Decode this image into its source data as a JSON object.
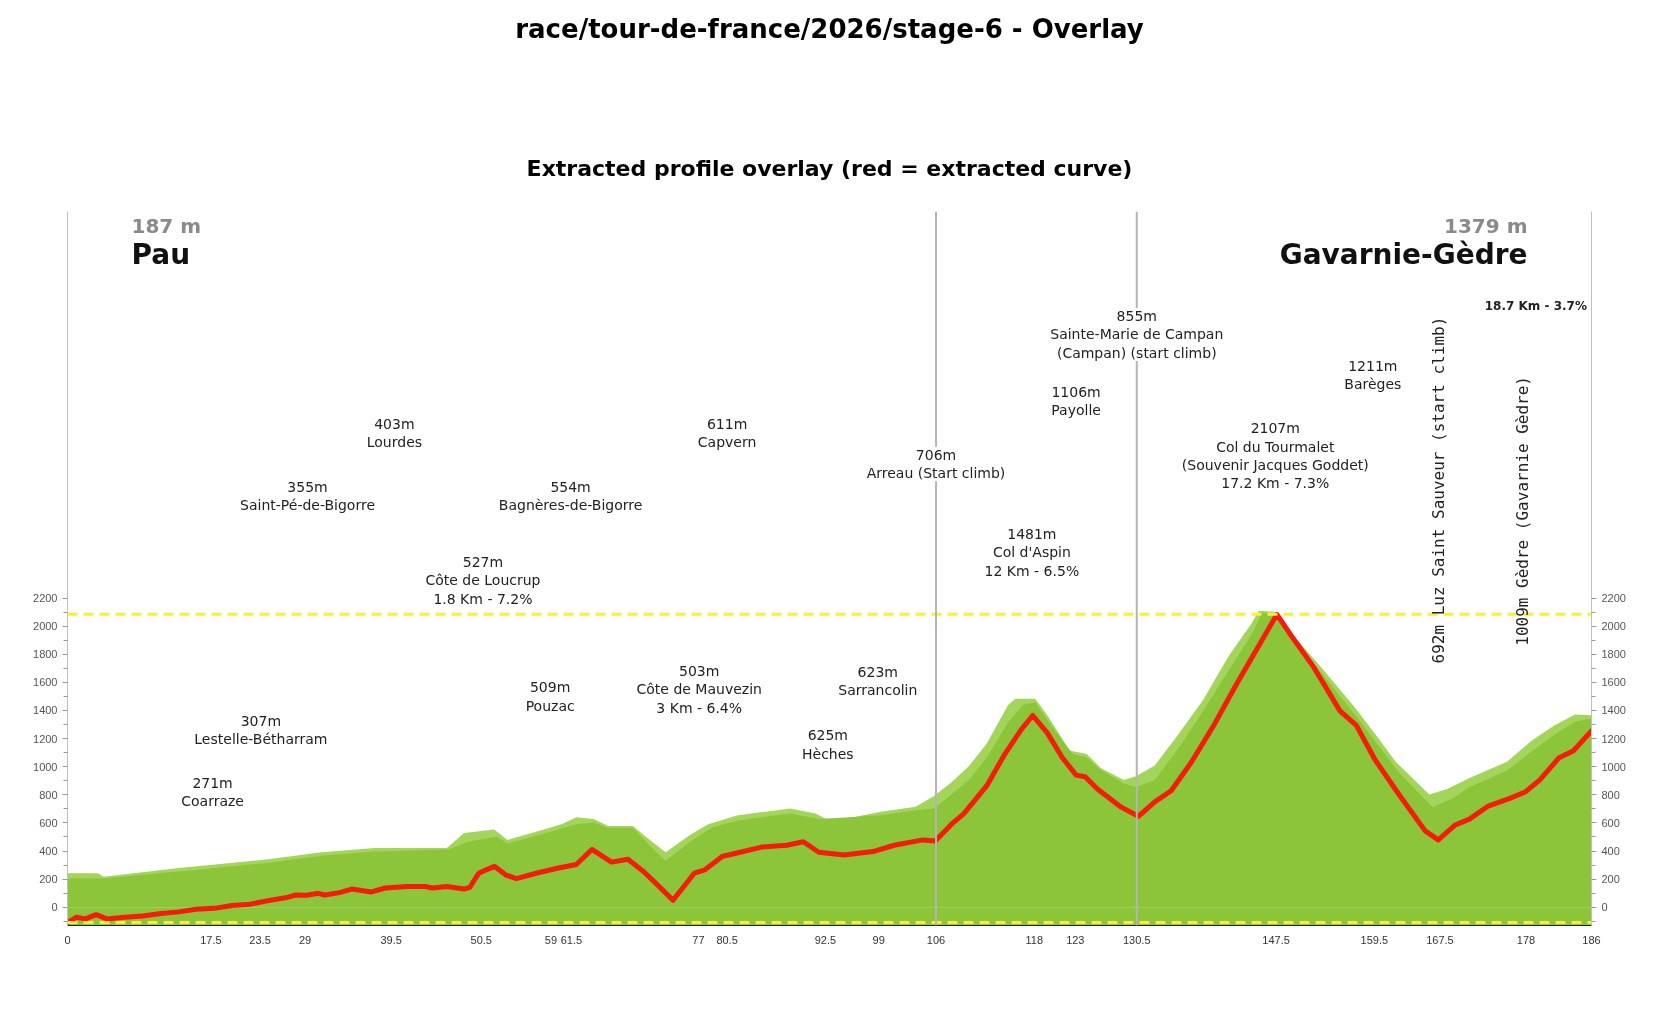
{
  "chart_data": {
    "type": "area",
    "title": "race/tour-de-france/2026/stage-6 - Overlay",
    "subtitle": "Extracted profile overlay (red = extracted curve)",
    "xlim": [
      0,
      186
    ],
    "xticks": [
      0,
      17.5,
      23.5,
      29,
      39.5,
      50.5,
      59,
      61.5,
      77,
      80.5,
      92.5,
      99,
      106,
      118,
      123,
      130.5,
      147.5,
      159.5,
      167.5,
      178,
      186
    ],
    "ylim": [
      -130,
      4950
    ],
    "yticks": [
      {
        "value": -100,
        "label": null
      },
      0,
      {
        "value": 100,
        "label": null
      },
      200,
      {
        "value": 300,
        "label": null
      },
      400,
      {
        "value": 500,
        "label": null
      },
      600,
      {
        "value": 700,
        "label": null
      },
      800,
      {
        "value": 900,
        "label": null
      },
      1000,
      {
        "value": 1100,
        "label": null
      },
      1200,
      {
        "value": 1300,
        "label": null
      },
      1400,
      {
        "value": 1500,
        "label": null
      },
      1600,
      {
        "value": 1700,
        "label": null
      },
      1800,
      {
        "value": 1900,
        "label": null
      },
      2000,
      {
        "value": 2100,
        "label": null
      },
      2200
    ],
    "y2lim": [
      -130,
      4950
    ],
    "y2ticks": [
      {
        "value": -100,
        "label": null
      },
      0,
      {
        "value": 100,
        "label": null
      },
      200,
      {
        "value": 300,
        "label": null
      },
      400,
      {
        "value": 500,
        "label": null
      },
      600,
      {
        "value": 700,
        "label": null
      },
      800,
      {
        "value": 900,
        "label": null
      },
      1000,
      {
        "value": 1100,
        "label": null
      },
      1200,
      {
        "value": 1300,
        "label": null
      },
      1400,
      {
        "value": 1500,
        "label": null
      },
      1600,
      {
        "value": 1700,
        "label": null
      },
      1800,
      {
        "value": 1900,
        "label": null
      },
      2000,
      {
        "value": 2100,
        "label": null
      },
      2200
    ],
    "series": [
      {
        "color": "#a3d55a",
        "x": [
          0,
          3.7,
          4.4,
          13.6,
          24.5,
          31.0,
          37.5,
          46.3,
          48.4,
          52.1,
          53.7,
          57.7,
          60.3,
          62.1,
          64.2,
          66.0,
          69.0,
          70.8,
          73.0,
          76.0,
          78.2,
          81.7,
          88.2,
          91.3,
          92.6,
          94.8,
          99.1,
          103.5,
          105.7,
          107.9,
          110.0,
          112.2,
          114.8,
          115.7,
          118.1,
          119.6,
          122.3,
          124.4,
          126.1,
          128.9,
          130.4,
          132.7,
          135.4,
          138.6,
          141.7,
          144.5,
          145.4,
          147.6,
          149.9,
          153.0,
          157.1,
          159.8,
          162.1,
          166.2,
          168.4,
          171.1,
          175.7,
          178.8,
          181.5,
          184.0,
          186.0
        ],
        "values": [
          242,
          242,
          217,
          279,
          341,
          391,
          421,
          421,
          528,
          553,
          479,
          546,
          591,
          641,
          628,
          578,
          578,
          491,
          391,
          516,
          591,
          653,
          703,
          666,
          628,
          628,
          678,
          715,
          790,
          890,
          1003,
          1165,
          1439,
          1484,
          1484,
          1364,
          1115,
          1090,
          990,
          906,
          932,
          1009,
          1216,
          1475,
          1786,
          2018,
          2109,
          2101,
          1915,
          1708,
          1423,
          1216,
          1035,
          802,
          841,
          919,
          1035,
          1190,
          1294,
          1371,
          1366
        ]
      },
      {
        "color": "#8cc43a",
        "x": [
          0,
          4.4,
          13.6,
          24.5,
          31.0,
          37.5,
          46.5,
          48.9,
          52.4,
          53.7,
          57.7,
          62.1,
          64.2,
          66.0,
          69.0,
          70.8,
          73.0,
          76.0,
          78.6,
          81.7,
          88.2,
          91.7,
          99.1,
          103.5,
          105.7,
          107.9,
          110.0,
          112.2,
          114.8,
          116.6,
          118.1,
          120.1,
          122.7,
          124.4,
          126.1,
          128.9,
          130.4,
          132.7,
          135.4,
          138.6,
          141.7,
          144.5,
          145.8,
          147.6,
          149.9,
          153.0,
          157.1,
          159.8,
          162.5,
          166.6,
          169.1,
          171.1,
          175.7,
          178.8,
          181.5,
          184.0,
          186.0
        ],
        "values": [
          204,
          204,
          254,
          316,
          366,
          396,
          411,
          466,
          504,
          454,
          516,
          591,
          603,
          566,
          566,
          454,
          329,
          466,
          566,
          616,
          666,
          628,
          653,
          690,
          703,
          803,
          903,
          1065,
          1314,
          1439,
          1459,
          1290,
          1090,
          1065,
          977,
          880,
          855,
          906,
          1113,
          1397,
          1682,
          1941,
          2096,
          2083,
          1902,
          1669,
          1371,
          1165,
          958,
          712,
          776,
          854,
          972,
          1113,
          1229,
          1320,
          1345
        ]
      },
      {
        "type": "line",
        "color": "#f41d0d",
        "x": [
          0,
          1.1,
          2.2,
          3.5,
          4.8,
          7.0,
          9.2,
          11.4,
          13.6,
          15.7,
          17.9,
          20.1,
          22.3,
          24.5,
          26.6,
          27.9,
          29.2,
          30.6,
          31.4,
          33.2,
          34.7,
          37.1,
          38.8,
          41.5,
          43.7,
          44.5,
          46.3,
          48.4,
          49.1,
          50.2,
          51.1,
          52.1,
          53.5,
          54.8,
          57.2,
          59.9,
          62.1,
          64.0,
          66.4,
          68.4,
          70.3,
          72.1,
          73.9,
          76.5,
          77.8,
          79.9,
          82.1,
          84.7,
          87.8,
          89.8,
          91.7,
          94.8,
          98.3,
          100.9,
          104.4,
          105.9,
          107.9,
          109.4,
          112.2,
          114.4,
          116.4,
          117.8,
          119.6,
          121.4,
          123.1,
          124.2,
          125.7,
          128.6,
          130.7,
          132.7,
          134.7,
          137.2,
          139.9,
          142.6,
          144.9,
          147.6,
          149.4,
          152.1,
          155.3,
          157.3,
          159.6,
          162.5,
          165.7,
          167.3,
          169.3,
          171.1,
          173.4,
          176.1,
          177.9,
          179.7,
          182.0,
          183.8,
          186
        ],
        "values": [
          -110,
          -71,
          -83,
          -53,
          -83,
          -71,
          -63,
          -45,
          -33,
          -15,
          -8,
          12,
          22,
          47,
          67,
          87,
          85,
          99,
          87,
          104,
          129,
          109,
          137,
          147,
          147,
          137,
          147,
          129,
          142,
          242,
          266,
          291,
          229,
          204,
          242,
          279,
          304,
          411,
          321,
          341,
          254,
          154,
          50,
          242,
          266,
          361,
          391,
          428,
          441,
          466,
          391,
          371,
          396,
          441,
          479,
          471,
          591,
          666,
          865,
          1090,
          1264,
          1364,
          1239,
          1065,
          940,
          928,
          841,
          712,
          647,
          750,
          829,
          1035,
          1294,
          1579,
          1811,
          2083,
          1928,
          1708,
          1397,
          1294,
          1048,
          802,
          543,
          479,
          583,
          627,
          720,
          776,
          820,
          906,
          1061,
          1113,
          1255
        ]
      }
    ],
    "bands": [
      {
        "axis": "y",
        "from": -130,
        "to": 0,
        "color": "#8cc43a"
      }
    ],
    "ref_lines": [
      {
        "axis": "y",
        "value": 2085,
        "color": "#f7f034",
        "line_style": "dashed"
      },
      {
        "axis": "y",
        "value": -108,
        "color": "#f7f034",
        "line_style": "dashed"
      },
      {
        "axis": "x",
        "value": 106,
        "color": "#b4b4b4",
        "line_style": "solid"
      },
      {
        "axis": "x",
        "value": 130.5,
        "color": "#b4b4b4",
        "line_style": "solid"
      }
    ],
    "annotations": [
      "403m\nLourdes",
      "355m\nSaint-Pé-de-Bigorre",
      "554m\nBagnères-de-Bigorre",
      "611m\nCapvern",
      "527m\nCôte de Loucrup\n1.8 Km - 7.2%",
      "509m\nPouzac",
      "307m\nLestelle-Bétharram",
      "271m\nCoarraze",
      "503m\nCôte de Mauvezin\n3 Km - 6.4%",
      "623m\nSarrancolin",
      "625m\nHèches",
      {
        "text": "706m\nArreau (Start climb)",
        "x": 106,
        "y": 3153
      },
      "1481m\nCol d'Aspin\n12 Km - 6.5%",
      "1106m\nPayolle",
      {
        "text": "855m\nSainte-Marie de Campan\n(Campan) (start climb)",
        "x": 130.5,
        "y": 4075
      },
      "2107m\nCol du Tourmalet\n(Souvenir Jacques Goddet)\n17.2 Km - 7.3%",
      "1211m\nBarèges",
      "692m Luz Saint Sauveur (start climb)",
      "1009m Gèdre (Gavarnie Gèdre)",
      "18.7 Km - 3.7%",
      "187 m\nPau",
      "1379 m\nGavarnie-Gèdre"
    ]
  }
}
